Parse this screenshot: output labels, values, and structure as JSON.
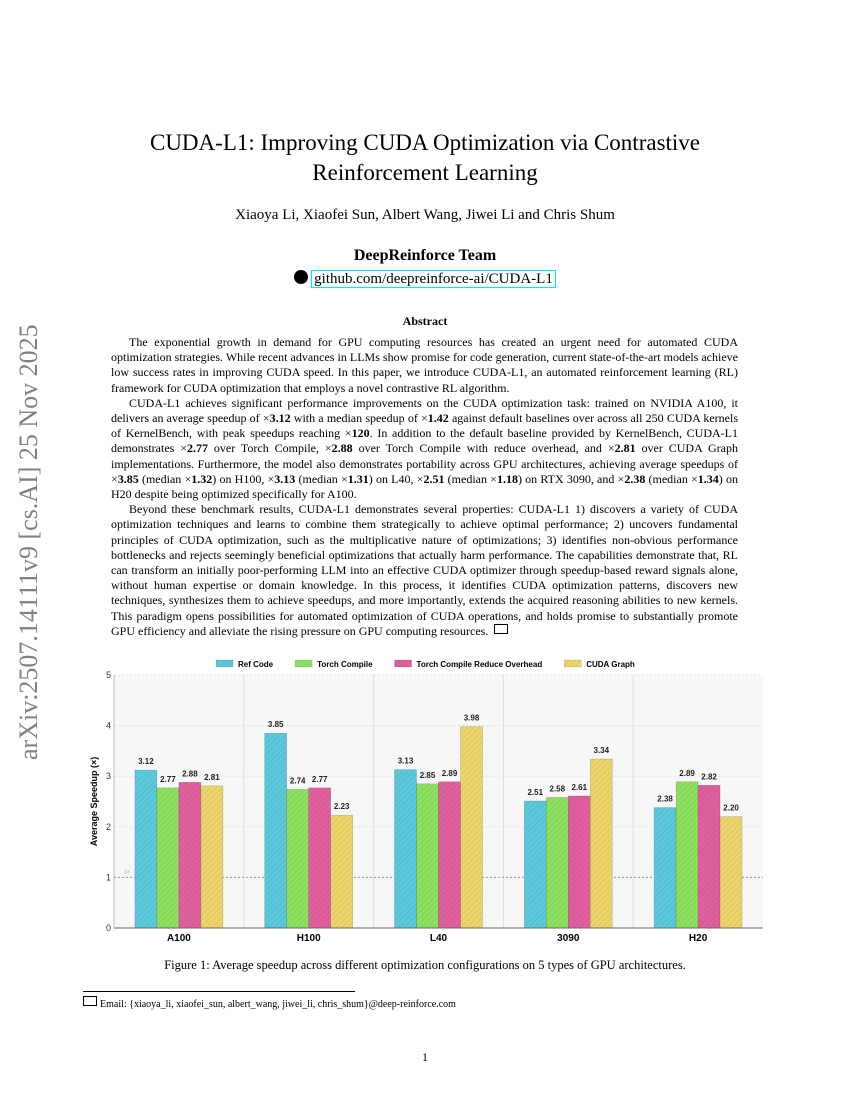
{
  "sidebar_stamp": "arXiv:2507.14111v9  [cs.AI]  25 Nov 2025",
  "title_line1": "CUDA-L1: Improving CUDA Optimization via Contrastive",
  "title_line2": "Reinforcement Learning",
  "authors": "Xiaoya Li, Xiaofei Sun, Albert Wang, Jiwei Li and Chris Shum",
  "team": "DeepReinforce Team",
  "repo_link": "github.com/deepreinforce-ai/CUDA-L1",
  "icons": {
    "repo": "github-icon",
    "email": "envelope-icon"
  },
  "abstract_heading": "Abstract",
  "abstract_paragraphs": [
    [
      {
        "t": "The exponential growth in demand for GPU computing resources has created an urgent need for automated CUDA optimization strategies. While recent advances in LLMs show promise for code generation, current state-of-the-art models achieve low success rates in improving CUDA speed. In this paper, we introduce CUDA-L1, an automated reinforcement learning (RL) framework for CUDA optimization that employs a novel contrastive RL algorithm."
      }
    ],
    [
      {
        "t": "CUDA-L1 achieves significant performance improvements on the CUDA optimization task: trained on NVIDIA A100, it delivers an average speedup of ×"
      },
      {
        "t": "3.12",
        "b": true
      },
      {
        "t": " with a median speedup of ×"
      },
      {
        "t": "1.42",
        "b": true
      },
      {
        "t": " against default baselines over across all 250 CUDA kernels of KernelBench, with peak speedups reaching ×"
      },
      {
        "t": "120",
        "b": true
      },
      {
        "t": ". In addition to the default baseline provided by KernelBench, CUDA-L1 demonstrates ×"
      },
      {
        "t": "2.77",
        "b": true
      },
      {
        "t": " over Torch Compile, ×"
      },
      {
        "t": "2.88",
        "b": true
      },
      {
        "t": " over Torch Compile with reduce overhead, and ×"
      },
      {
        "t": "2.81",
        "b": true
      },
      {
        "t": " over CUDA Graph implementations. Furthermore, the model also demonstrates portability across GPU architectures, achieving average speedups of ×"
      },
      {
        "t": "3.85",
        "b": true
      },
      {
        "t": " (median ×"
      },
      {
        "t": "1.32",
        "b": true
      },
      {
        "t": ") on H100, ×"
      },
      {
        "t": "3.13",
        "b": true
      },
      {
        "t": " (median ×"
      },
      {
        "t": "1.31",
        "b": true
      },
      {
        "t": ") on L40, ×"
      },
      {
        "t": "2.51",
        "b": true
      },
      {
        "t": " (median ×"
      },
      {
        "t": "1.18",
        "b": true
      },
      {
        "t": ") on RTX 3090, and ×"
      },
      {
        "t": "2.38",
        "b": true
      },
      {
        "t": " (median ×"
      },
      {
        "t": "1.34",
        "b": true
      },
      {
        "t": ") on H20 despite being optimized specifically for A100."
      }
    ],
    [
      {
        "t": "Beyond these benchmark results, CUDA-L1 demonstrates several properties: CUDA-L1 1) discovers a variety of CUDA optimization techniques and learns to combine them strategically to achieve optimal performance; 2) uncovers fundamental principles of CUDA optimization, such as the multiplicative nature of optimizations; 3) identifies non-obvious performance bottlenecks and rejects seemingly beneficial optimizations that actually harm performance. The capabilities demonstrate that, RL can transform an initially poor-performing LLM into an effective CUDA optimizer through speedup-based reward signals alone, without human expertise or domain knowledge. In this process, it identifies CUDA optimization patterns, discovers new techniques, synthesizes them to achieve speedups, and more importantly, extends the acquired reasoning abilities to new kernels. This paradigm opens possibilities for automated optimization of CUDA operations, and holds promise to substantially promote GPU efficiency and alleviate the rising pressure on GPU computing resources."
      }
    ]
  ],
  "chart_data": {
    "type": "bar",
    "title": "",
    "xlabel": "",
    "ylabel": "Average Speedup (×)",
    "ylim": [
      0,
      5
    ],
    "yticks": [
      "0",
      "1",
      "2",
      "3",
      "4",
      "5"
    ],
    "grid": true,
    "legend_placement": "top",
    "reference_line": {
      "y": 1,
      "label": "1×"
    },
    "categories": [
      "A100",
      "H100",
      "L40",
      "3090",
      "H20"
    ],
    "series": [
      {
        "name": "Ref Code",
        "color": "#5bc8dc",
        "values": [
          3.12,
          3.85,
          3.13,
          2.51,
          2.38
        ]
      },
      {
        "name": "Torch Compile",
        "color": "#8ee060",
        "values": [
          2.77,
          2.74,
          2.85,
          2.58,
          2.89
        ]
      },
      {
        "name": "Torch Compile Reduce Overhead",
        "color": "#e0609e",
        "values": [
          2.88,
          2.77,
          2.89,
          2.61,
          2.82
        ]
      },
      {
        "name": "CUDA Graph",
        "color": "#ecd46a",
        "values": [
          2.81,
          2.23,
          3.98,
          3.34,
          2.2
        ]
      }
    ]
  },
  "caption": "Figure 1: Average speedup across different optimization configurations on 5 types of GPU architectures.",
  "footnote": "Email: {xiaoya_li, xiaofei_sun, albert_wang, jiwei_li, chris_shum}@deep-reinforce.com",
  "page_number": "1"
}
